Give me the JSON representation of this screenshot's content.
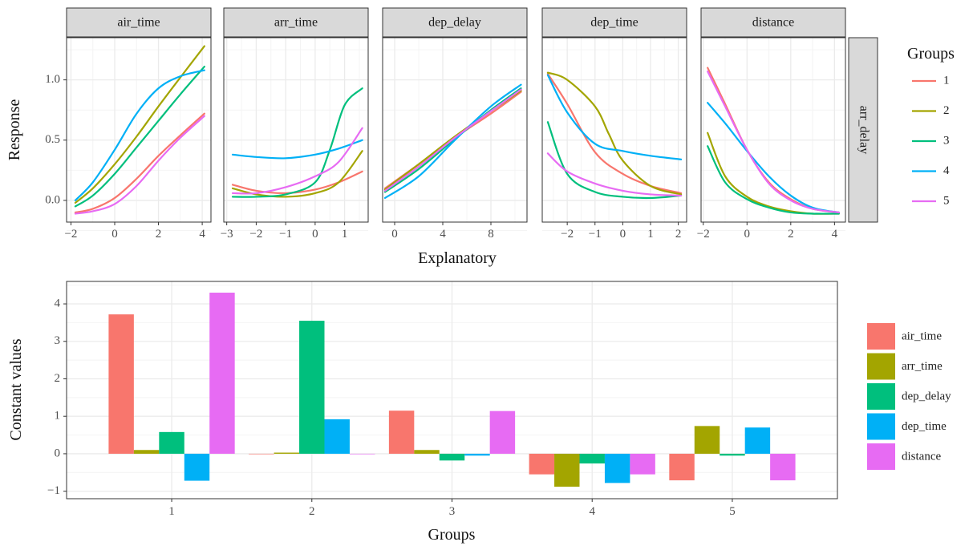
{
  "colors": {
    "g1": "#F8766D",
    "g2": "#A3A500",
    "g3": "#00BF7D",
    "g4": "#00B0F6",
    "g5": "#E76BF3",
    "strip_bg": "#D9D9D9",
    "grid_major": "#EBEBEB",
    "grid_minor": "#F4F4F4",
    "panel_border": "#333333"
  },
  "chart_data": [
    {
      "type": "line",
      "facet_strip_right": "arr_delay",
      "xlabel": "Explanatory",
      "ylabel": "Response",
      "ylim": [
        -0.18,
        1.35
      ],
      "yticks": [
        0.0,
        0.5,
        1.0
      ],
      "ytick_labels": [
        "0.0",
        "0.5",
        "1.0"
      ],
      "legend": {
        "title": "Groups",
        "placement": "right",
        "items": [
          "1",
          "2",
          "3",
          "4",
          "5"
        ]
      },
      "facets": [
        {
          "title": "air_time",
          "xlim": [
            -2.2,
            4.4
          ],
          "xticks": [
            -2,
            0,
            2,
            4
          ],
          "xtick_labels": [
            "−2",
            "0",
            "2",
            "4"
          ],
          "series": [
            {
              "name": "1",
              "x": [
                -1.8,
                -1,
                0,
                1,
                2,
                3,
                4.1
              ],
              "y": [
                -0.1,
                -0.07,
                0.02,
                0.18,
                0.37,
                0.54,
                0.72
              ]
            },
            {
              "name": "2",
              "x": [
                -1.8,
                -1,
                0,
                1,
                2,
                3,
                4.1
              ],
              "y": [
                -0.02,
                0.1,
                0.3,
                0.53,
                0.78,
                1.02,
                1.28
              ]
            },
            {
              "name": "3",
              "x": [
                -1.8,
                -1,
                0,
                1,
                2,
                3,
                4.1
              ],
              "y": [
                -0.05,
                0.04,
                0.22,
                0.44,
                0.66,
                0.88,
                1.11
              ]
            },
            {
              "name": "4",
              "x": [
                -1.8,
                -1,
                0,
                1,
                2,
                3,
                4.1
              ],
              "y": [
                0.0,
                0.15,
                0.42,
                0.72,
                0.93,
                1.03,
                1.08
              ]
            },
            {
              "name": "5",
              "x": [
                -1.8,
                -1,
                0,
                1,
                2,
                3,
                4.1
              ],
              "y": [
                -0.11,
                -0.09,
                -0.03,
                0.12,
                0.33,
                0.52,
                0.7
              ]
            }
          ]
        },
        {
          "title": "arr_time",
          "xlim": [
            -3.1,
            1.8
          ],
          "xticks": [
            -3,
            -2,
            -1,
            0,
            1
          ],
          "xtick_labels": [
            "−3",
            "−2",
            "−1",
            "0",
            "1"
          ],
          "series": [
            {
              "name": "1",
              "x": [
                -2.8,
                -2,
                -1,
                0,
                0.8,
                1.6
              ],
              "y": [
                0.13,
                0.08,
                0.06,
                0.09,
                0.15,
                0.24
              ]
            },
            {
              "name": "2",
              "x": [
                -2.8,
                -2,
                -1,
                0,
                0.8,
                1.6
              ],
              "y": [
                0.1,
                0.05,
                0.03,
                0.06,
                0.15,
                0.41
              ]
            },
            {
              "name": "3",
              "x": [
                -2.8,
                -2,
                -1,
                0,
                0.5,
                1,
                1.6
              ],
              "y": [
                0.03,
                0.03,
                0.05,
                0.15,
                0.42,
                0.79,
                0.93
              ]
            },
            {
              "name": "4",
              "x": [
                -2.8,
                -2,
                -1,
                0,
                0.8,
                1.6
              ],
              "y": [
                0.38,
                0.36,
                0.35,
                0.38,
                0.43,
                0.5
              ]
            },
            {
              "name": "5",
              "x": [
                -2.8,
                -2,
                -1,
                0,
                0.8,
                1.6
              ],
              "y": [
                0.06,
                0.06,
                0.11,
                0.2,
                0.32,
                0.6
              ]
            }
          ]
        },
        {
          "title": "dep_delay",
          "xlim": [
            -1.0,
            11.0
          ],
          "xticks": [
            0,
            4,
            8
          ],
          "xtick_labels": [
            "0",
            "4",
            "8"
          ],
          "series": [
            {
              "name": "1",
              "x": [
                -0.8,
                2,
                5,
                8,
                10.5
              ],
              "y": [
                0.1,
                0.3,
                0.52,
                0.72,
                0.9
              ]
            },
            {
              "name": "2",
              "x": [
                -0.8,
                2,
                5,
                8,
                10.5
              ],
              "y": [
                0.09,
                0.3,
                0.53,
                0.74,
                0.91
              ]
            },
            {
              "name": "3",
              "x": [
                -0.8,
                2,
                5,
                8,
                10.5
              ],
              "y": [
                0.07,
                0.26,
                0.51,
                0.75,
                0.93
              ]
            },
            {
              "name": "4",
              "x": [
                -0.8,
                2,
                5,
                8,
                10.5
              ],
              "y": [
                0.02,
                0.2,
                0.5,
                0.78,
                0.96
              ]
            },
            {
              "name": "5",
              "x": [
                -0.8,
                2,
                5,
                8,
                10.5
              ],
              "y": [
                0.08,
                0.28,
                0.52,
                0.74,
                0.92
              ]
            }
          ]
        },
        {
          "title": "dep_time",
          "xlim": [
            -2.9,
            2.3
          ],
          "xticks": [
            -2,
            -1,
            0,
            1,
            2
          ],
          "xtick_labels": [
            "−2",
            "−1",
            "0",
            "1",
            "2"
          ],
          "series": [
            {
              "name": "1",
              "x": [
                -2.7,
                -2,
                -1,
                0,
                1,
                2.1
              ],
              "y": [
                1.05,
                0.8,
                0.4,
                0.22,
                0.12,
                0.06
              ]
            },
            {
              "name": "2",
              "x": [
                -2.7,
                -2,
                -1,
                -0.5,
                0,
                1,
                2.1
              ],
              "y": [
                1.06,
                1.0,
                0.78,
                0.55,
                0.33,
                0.12,
                0.05
              ]
            },
            {
              "name": "3",
              "x": [
                -2.7,
                -2,
                -1,
                0,
                1,
                2.1
              ],
              "y": [
                0.65,
                0.22,
                0.07,
                0.03,
                0.02,
                0.04
              ]
            },
            {
              "name": "4",
              "x": [
                -2.7,
                -2,
                -1,
                0,
                1,
                2.1
              ],
              "y": [
                1.04,
                0.73,
                0.47,
                0.41,
                0.37,
                0.34
              ]
            },
            {
              "name": "5",
              "x": [
                -2.7,
                -2,
                -1,
                0,
                1,
                2.1
              ],
              "y": [
                0.39,
                0.24,
                0.14,
                0.08,
                0.05,
                0.04
              ]
            }
          ]
        },
        {
          "title": "distance",
          "xlim": [
            -2.1,
            4.5
          ],
          "xticks": [
            -2,
            0,
            2,
            4
          ],
          "xtick_labels": [
            "−2",
            "0",
            "2",
            "4"
          ],
          "series": [
            {
              "name": "1",
              "x": [
                -1.8,
                -1,
                0,
                1,
                2,
                3,
                4.2
              ],
              "y": [
                1.1,
                0.8,
                0.42,
                0.15,
                0.01,
                -0.07,
                -0.1
              ]
            },
            {
              "name": "2",
              "x": [
                -1.8,
                -1,
                0,
                1,
                2,
                3,
                4.2
              ],
              "y": [
                0.56,
                0.2,
                0.03,
                -0.05,
                -0.09,
                -0.11,
                -0.11
              ]
            },
            {
              "name": "3",
              "x": [
                -1.8,
                -1,
                0,
                1,
                2,
                3,
                4.2
              ],
              "y": [
                0.45,
                0.15,
                0.01,
                -0.06,
                -0.1,
                -0.11,
                -0.11
              ]
            },
            {
              "name": "4",
              "x": [
                -1.8,
                -1,
                0,
                1,
                2,
                3,
                4.2
              ],
              "y": [
                0.81,
                0.64,
                0.41,
                0.2,
                0.04,
                -0.06,
                -0.1
              ]
            },
            {
              "name": "5",
              "x": [
                -1.8,
                -1,
                0,
                1,
                2,
                3,
                4.2
              ],
              "y": [
                1.07,
                0.78,
                0.42,
                0.14,
                0.0,
                -0.07,
                -0.1
              ]
            }
          ]
        }
      ]
    },
    {
      "type": "bar",
      "xlabel": "Groups",
      "ylabel": "Constant values",
      "categories": [
        "1",
        "2",
        "3",
        "4",
        "5"
      ],
      "ylim": [
        -1.2,
        4.6
      ],
      "yticks": [
        -1,
        0,
        1,
        2,
        3,
        4
      ],
      "ytick_labels": [
        "−1",
        "0",
        "1",
        "2",
        "3",
        "4"
      ],
      "legend": {
        "placement": "right"
      },
      "series": [
        {
          "name": "air_time",
          "values": [
            3.72,
            0.0,
            1.15,
            -0.55,
            -0.71
          ]
        },
        {
          "name": "arr_time",
          "values": [
            0.1,
            0.03,
            0.1,
            -0.88,
            0.74
          ]
        },
        {
          "name": "dep_delay",
          "values": [
            0.58,
            3.55,
            -0.18,
            -0.26,
            -0.05
          ]
        },
        {
          "name": "dep_time",
          "values": [
            -0.72,
            0.92,
            -0.05,
            -0.78,
            0.7
          ]
        },
        {
          "name": "distance",
          "values": [
            4.3,
            0.0,
            1.14,
            -0.55,
            -0.71
          ]
        }
      ]
    }
  ]
}
